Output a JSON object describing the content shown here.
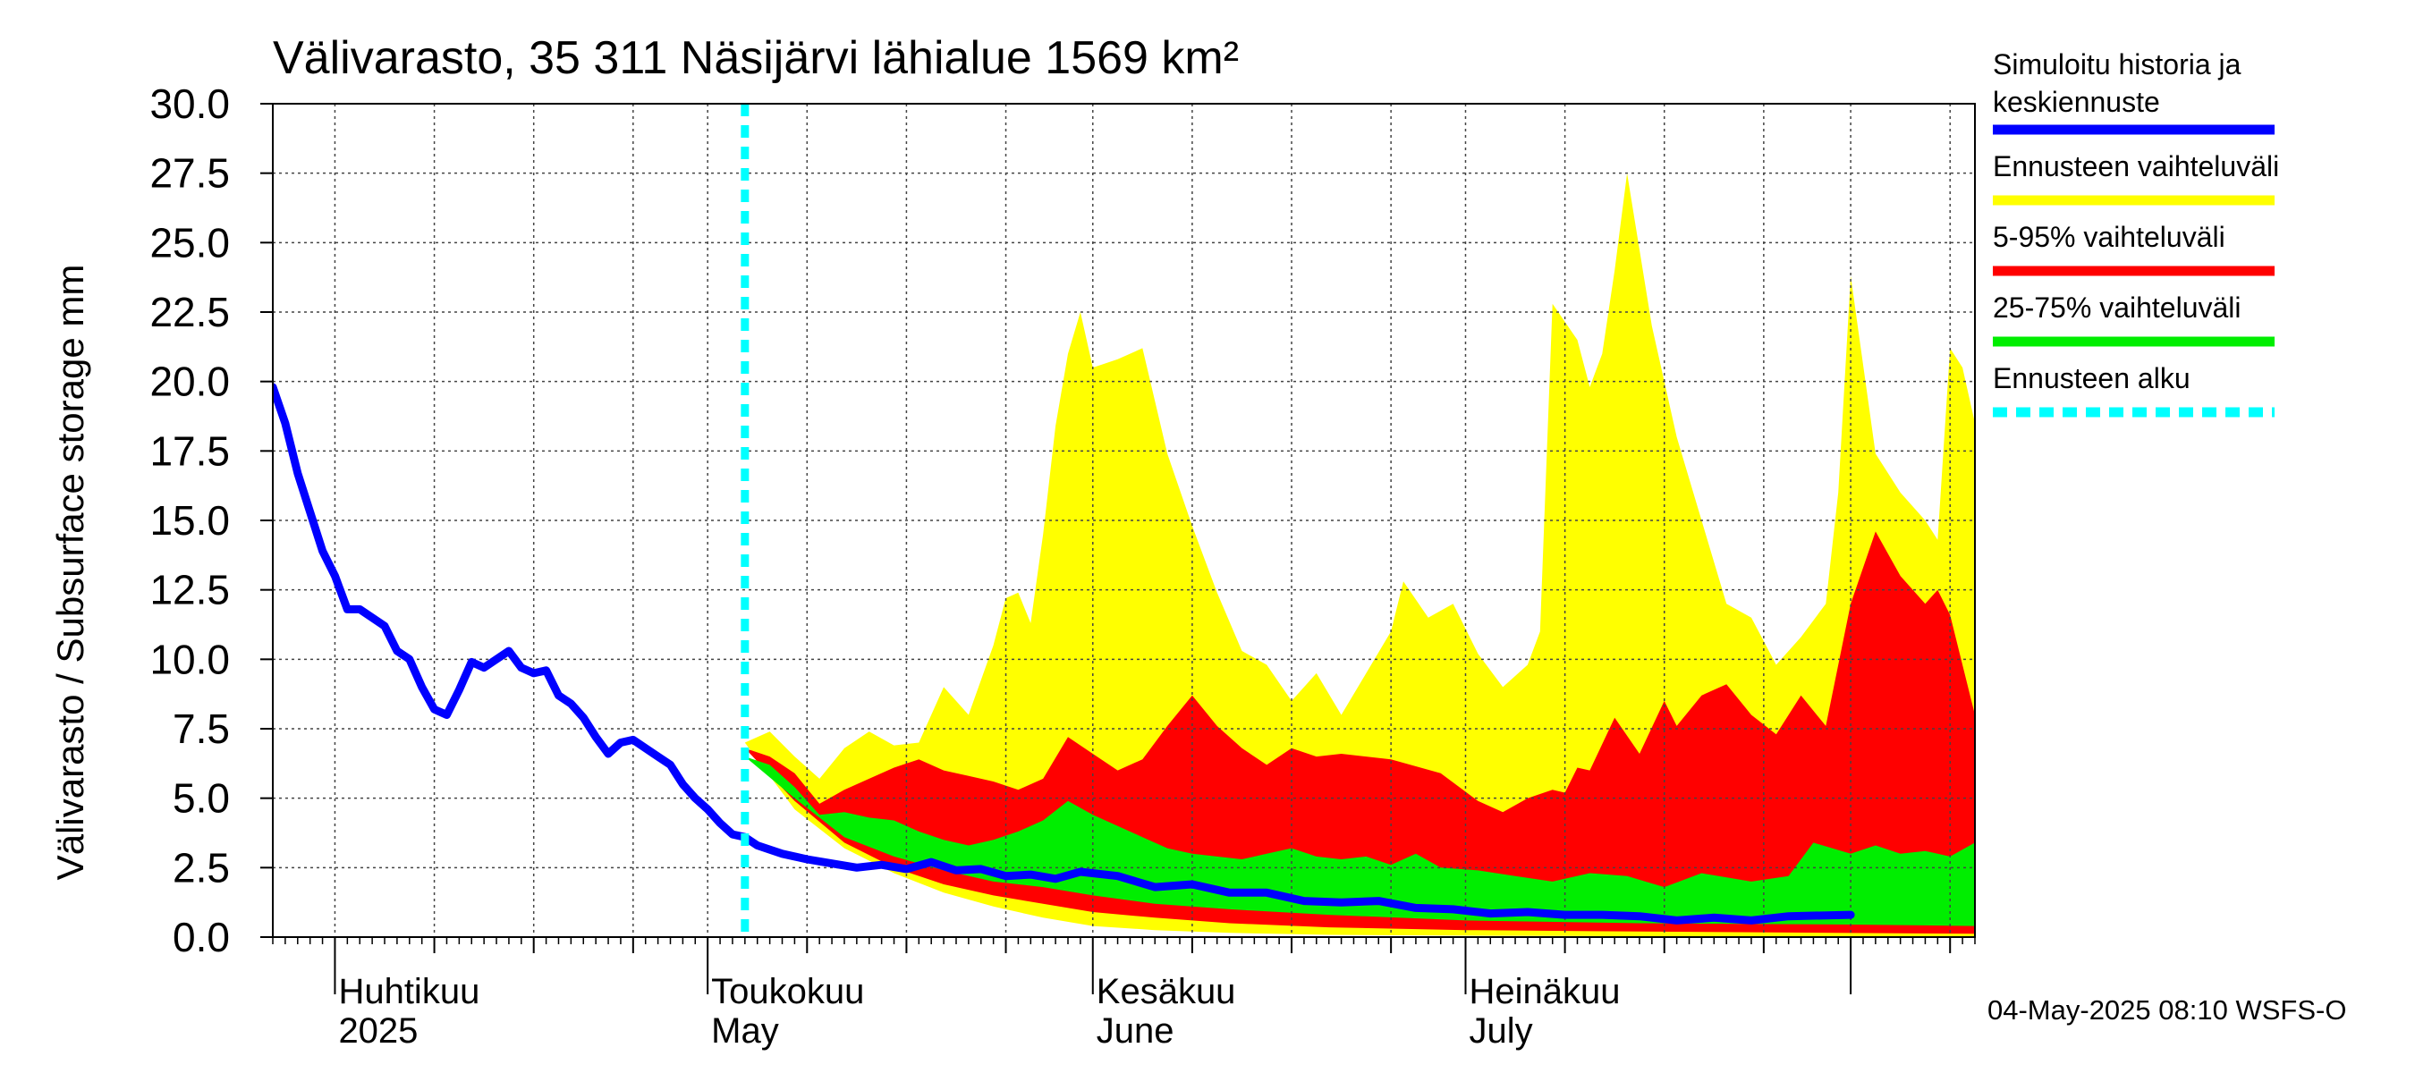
{
  "chart_data": {
    "type": "area",
    "title": "Välivarasto, 35 311 Näsijärvi lähialue 1569 km²",
    "ylabel": "Välivarasto / Subsurface storage  mm",
    "ylim": [
      0,
      30
    ],
    "yticks": [
      "0.0",
      "2.5",
      "5.0",
      "7.5",
      "10.0",
      "12.5",
      "15.0",
      "17.5",
      "20.0",
      "22.5",
      "25.0",
      "27.5",
      "30.0"
    ],
    "xlim": [
      "2025-03-27",
      "2025-08-01"
    ],
    "xticks_months": [
      {
        "date": "2025-04-01",
        "label1": "Huhtikuu",
        "label2": "2025"
      },
      {
        "date": "2025-05-01",
        "label1": "Toukokuu",
        "label2": "May"
      },
      {
        "date": "2025-06-01",
        "label1": "Kesäkuu",
        "label2": "June"
      },
      {
        "date": "2025-07-01",
        "label1": "Heinäkuu",
        "label2": "July"
      }
    ],
    "grid": true,
    "forecast_start": "2025-05-04",
    "footer": "04-May-2025 08:10 WSFS-O",
    "colors": {
      "history": "#0000ff",
      "range_full": "#ffff00",
      "range_5_95": "#ff0000",
      "range_25_75": "#00ee00",
      "forecast_start": "#00ffff"
    },
    "legend": [
      {
        "label": "Simuloitu historia ja",
        "label2": "keskiennuste",
        "color": "#0000ff",
        "style": "solid"
      },
      {
        "label": "Ennusteen vaihteluväli",
        "color": "#ffff00",
        "style": "solid"
      },
      {
        "label": "5-95% vaihteluväli",
        "color": "#ff0000",
        "style": "solid"
      },
      {
        "label": "25-75% vaihteluväli",
        "color": "#00ee00",
        "style": "solid"
      },
      {
        "label": "Ennusteen alku",
        "color": "#00ffff",
        "style": "dashed"
      }
    ],
    "history": [
      [
        "2025-03-27",
        19.8
      ],
      [
        "2025-03-28",
        18.5
      ],
      [
        "2025-03-29",
        16.7
      ],
      [
        "2025-03-30",
        15.3
      ],
      [
        "2025-03-31",
        13.9
      ],
      [
        "2025-04-01",
        13.0
      ],
      [
        "2025-04-02",
        11.8
      ],
      [
        "2025-04-03",
        11.8
      ],
      [
        "2025-04-04",
        11.5
      ],
      [
        "2025-04-05",
        11.2
      ],
      [
        "2025-04-06",
        10.3
      ],
      [
        "2025-04-07",
        10.0
      ],
      [
        "2025-04-08",
        9.0
      ],
      [
        "2025-04-09",
        8.2
      ],
      [
        "2025-04-10",
        8.0
      ],
      [
        "2025-04-11",
        8.9
      ],
      [
        "2025-04-12",
        9.9
      ],
      [
        "2025-04-13",
        9.7
      ],
      [
        "2025-04-14",
        10.0
      ],
      [
        "2025-04-15",
        10.3
      ],
      [
        "2025-04-16",
        9.7
      ],
      [
        "2025-04-17",
        9.5
      ],
      [
        "2025-04-18",
        9.6
      ],
      [
        "2025-04-19",
        8.7
      ],
      [
        "2025-04-20",
        8.4
      ],
      [
        "2025-04-21",
        7.9
      ],
      [
        "2025-04-22",
        7.2
      ],
      [
        "2025-04-23",
        6.6
      ],
      [
        "2025-04-24",
        7.0
      ],
      [
        "2025-04-25",
        7.1
      ],
      [
        "2025-04-26",
        6.8
      ],
      [
        "2025-04-27",
        6.5
      ],
      [
        "2025-04-28",
        6.2
      ],
      [
        "2025-04-29",
        5.5
      ],
      [
        "2025-04-30",
        5.0
      ],
      [
        "2025-05-01",
        4.6
      ],
      [
        "2025-05-02",
        4.1
      ],
      [
        "2025-05-03",
        3.7
      ],
      [
        "2025-05-04",
        3.6
      ],
      [
        "2025-05-05",
        3.3
      ],
      [
        "2025-05-07",
        3.0
      ],
      [
        "2025-05-09",
        2.8
      ],
      [
        "2025-05-11",
        2.65
      ],
      [
        "2025-05-13",
        2.5
      ],
      [
        "2025-05-15",
        2.6
      ],
      [
        "2025-05-17",
        2.45
      ],
      [
        "2025-05-19",
        2.7
      ],
      [
        "2025-05-21",
        2.4
      ],
      [
        "2025-05-23",
        2.45
      ],
      [
        "2025-05-25",
        2.2
      ],
      [
        "2025-05-27",
        2.25
      ],
      [
        "2025-05-29",
        2.1
      ],
      [
        "2025-05-31",
        2.35
      ],
      [
        "2025-06-03",
        2.2
      ],
      [
        "2025-06-06",
        1.8
      ],
      [
        "2025-06-09",
        1.9
      ],
      [
        "2025-06-12",
        1.6
      ],
      [
        "2025-06-15",
        1.6
      ],
      [
        "2025-06-18",
        1.3
      ],
      [
        "2025-06-21",
        1.25
      ],
      [
        "2025-06-24",
        1.3
      ],
      [
        "2025-06-27",
        1.05
      ],
      [
        "2025-06-30",
        1.0
      ],
      [
        "2025-07-03",
        0.85
      ],
      [
        "2025-07-06",
        0.9
      ],
      [
        "2025-07-09",
        0.8
      ],
      [
        "2025-07-12",
        0.8
      ],
      [
        "2025-07-15",
        0.75
      ],
      [
        "2025-07-18",
        0.6
      ],
      [
        "2025-07-21",
        0.7
      ],
      [
        "2025-07-24",
        0.6
      ],
      [
        "2025-07-27",
        0.75
      ],
      [
        "2025-08-01",
        0.8
      ]
    ],
    "range_full": {
      "upper": [
        [
          "2025-05-04",
          7.0
        ],
        [
          "2025-05-06",
          7.4
        ],
        [
          "2025-05-08",
          6.5
        ],
        [
          "2025-05-10",
          5.7
        ],
        [
          "2025-05-12",
          6.8
        ],
        [
          "2025-05-14",
          7.4
        ],
        [
          "2025-05-16",
          6.9
        ],
        [
          "2025-05-18",
          7.0
        ],
        [
          "2025-05-20",
          9.0
        ],
        [
          "2025-05-22",
          8.0
        ],
        [
          "2025-05-24",
          10.5
        ],
        [
          "2025-05-25",
          12.2
        ],
        [
          "2025-05-26",
          12.4
        ],
        [
          "2025-05-27",
          11.3
        ],
        [
          "2025-05-28",
          14.5
        ],
        [
          "2025-05-29",
          18.4
        ],
        [
          "2025-05-30",
          21.0
        ],
        [
          "2025-05-31",
          22.5
        ],
        [
          "2025-06-01",
          20.5
        ],
        [
          "2025-06-03",
          20.8
        ],
        [
          "2025-06-05",
          21.2
        ],
        [
          "2025-06-07",
          17.4
        ],
        [
          "2025-06-09",
          14.8
        ],
        [
          "2025-06-11",
          12.4
        ],
        [
          "2025-06-13",
          10.3
        ],
        [
          "2025-06-15",
          9.8
        ],
        [
          "2025-06-17",
          8.5
        ],
        [
          "2025-06-19",
          9.5
        ],
        [
          "2025-06-21",
          8.0
        ],
        [
          "2025-06-23",
          9.5
        ],
        [
          "2025-06-25",
          11.0
        ],
        [
          "2025-06-26",
          12.8
        ],
        [
          "2025-06-28",
          11.5
        ],
        [
          "2025-06-30",
          12.0
        ],
        [
          "2025-07-02",
          10.2
        ],
        [
          "2025-07-04",
          9.0
        ],
        [
          "2025-07-06",
          9.8
        ],
        [
          "2025-07-07",
          11.0
        ],
        [
          "2025-07-08",
          22.8
        ],
        [
          "2025-07-10",
          21.5
        ],
        [
          "2025-07-11",
          19.8
        ],
        [
          "2025-07-12",
          21.0
        ],
        [
          "2025-07-13",
          24.0
        ],
        [
          "2025-07-14",
          27.5
        ],
        [
          "2025-07-16",
          22.0
        ],
        [
          "2025-07-18",
          18.0
        ],
        [
          "2025-07-20",
          15.0
        ],
        [
          "2025-07-22",
          12.0
        ],
        [
          "2025-07-24",
          11.5
        ],
        [
          "2025-07-26",
          9.8
        ],
        [
          "2025-07-28",
          10.8
        ],
        [
          "2025-07-30",
          12.0
        ],
        [
          "2025-07-31",
          16.0
        ],
        [
          "2025-08-01",
          23.8
        ],
        [
          "2025-08-03",
          17.4
        ],
        [
          "2025-08-05",
          16.0
        ],
        [
          "2025-08-07",
          15.0
        ],
        [
          "2025-08-08",
          14.3
        ],
        [
          "2025-08-09",
          21.2
        ],
        [
          "2025-08-10",
          20.5
        ],
        [
          "2025-08-11",
          18.5
        ]
      ],
      "lower": [
        [
          "2025-05-04",
          7.0
        ],
        [
          "2025-05-08",
          4.6
        ],
        [
          "2025-05-12",
          3.2
        ],
        [
          "2025-05-16",
          2.3
        ],
        [
          "2025-05-20",
          1.6
        ],
        [
          "2025-05-24",
          1.1
        ],
        [
          "2025-05-28",
          0.7
        ],
        [
          "2025-06-01",
          0.4
        ],
        [
          "2025-06-06",
          0.25
        ],
        [
          "2025-06-12",
          0.15
        ],
        [
          "2025-06-20",
          0.08
        ],
        [
          "2025-07-01",
          0.05
        ],
        [
          "2025-07-15",
          0.03
        ],
        [
          "2025-08-11",
          0.02
        ]
      ]
    },
    "range_5_95": {
      "upper": [
        [
          "2025-05-04",
          6.8
        ],
        [
          "2025-05-06",
          6.5
        ],
        [
          "2025-05-08",
          5.9
        ],
        [
          "2025-05-10",
          4.8
        ],
        [
          "2025-05-12",
          5.3
        ],
        [
          "2025-05-14",
          5.7
        ],
        [
          "2025-05-16",
          6.1
        ],
        [
          "2025-05-18",
          6.4
        ],
        [
          "2025-05-20",
          6.0
        ],
        [
          "2025-05-22",
          5.8
        ],
        [
          "2025-05-24",
          5.6
        ],
        [
          "2025-05-26",
          5.3
        ],
        [
          "2025-05-28",
          5.7
        ],
        [
          "2025-05-30",
          7.2
        ],
        [
          "2025-06-01",
          6.6
        ],
        [
          "2025-06-03",
          6.0
        ],
        [
          "2025-06-05",
          6.4
        ],
        [
          "2025-06-07",
          7.6
        ],
        [
          "2025-06-09",
          8.7
        ],
        [
          "2025-06-11",
          7.6
        ],
        [
          "2025-06-13",
          6.8
        ],
        [
          "2025-06-15",
          6.2
        ],
        [
          "2025-06-17",
          6.8
        ],
        [
          "2025-06-19",
          6.5
        ],
        [
          "2025-06-21",
          6.6
        ],
        [
          "2025-06-25",
          6.4
        ],
        [
          "2025-06-29",
          5.9
        ],
        [
          "2025-07-02",
          4.9
        ],
        [
          "2025-07-04",
          4.5
        ],
        [
          "2025-07-06",
          5.0
        ],
        [
          "2025-07-08",
          5.3
        ],
        [
          "2025-07-09",
          5.2
        ],
        [
          "2025-07-10",
          6.1
        ],
        [
          "2025-07-11",
          6.0
        ],
        [
          "2025-07-13",
          7.9
        ],
        [
          "2025-07-15",
          6.6
        ],
        [
          "2025-07-17",
          8.5
        ],
        [
          "2025-07-18",
          7.6
        ],
        [
          "2025-07-20",
          8.7
        ],
        [
          "2025-07-22",
          9.1
        ],
        [
          "2025-07-24",
          8.0
        ],
        [
          "2025-07-26",
          7.3
        ],
        [
          "2025-07-28",
          8.7
        ],
        [
          "2025-07-30",
          7.6
        ],
        [
          "2025-08-01",
          12.0
        ],
        [
          "2025-08-03",
          14.6
        ],
        [
          "2025-08-05",
          13.0
        ],
        [
          "2025-08-07",
          12.0
        ],
        [
          "2025-08-08",
          12.5
        ],
        [
          "2025-08-09",
          11.6
        ],
        [
          "2025-08-11",
          8.0
        ]
      ],
      "lower": [
        [
          "2025-05-04",
          6.8
        ],
        [
          "2025-05-08",
          4.9
        ],
        [
          "2025-05-12",
          3.4
        ],
        [
          "2025-05-16",
          2.5
        ],
        [
          "2025-05-20",
          1.9
        ],
        [
          "2025-05-24",
          1.5
        ],
        [
          "2025-05-28",
          1.2
        ],
        [
          "2025-06-01",
          0.9
        ],
        [
          "2025-06-06",
          0.7
        ],
        [
          "2025-06-12",
          0.5
        ],
        [
          "2025-06-20",
          0.35
        ],
        [
          "2025-07-01",
          0.25
        ],
        [
          "2025-07-15",
          0.2
        ],
        [
          "2025-08-11",
          0.12
        ]
      ]
    },
    "range_25_75": {
      "upper": [
        [
          "2025-05-04",
          6.5
        ],
        [
          "2025-05-06",
          6.2
        ],
        [
          "2025-05-08",
          5.4
        ],
        [
          "2025-05-10",
          4.4
        ],
        [
          "2025-05-12",
          4.5
        ],
        [
          "2025-05-14",
          4.3
        ],
        [
          "2025-05-16",
          4.2
        ],
        [
          "2025-05-18",
          3.8
        ],
        [
          "2025-05-20",
          3.5
        ],
        [
          "2025-05-22",
          3.3
        ],
        [
          "2025-05-24",
          3.5
        ],
        [
          "2025-05-26",
          3.8
        ],
        [
          "2025-05-28",
          4.2
        ],
        [
          "2025-05-30",
          4.9
        ],
        [
          "2025-06-01",
          4.4
        ],
        [
          "2025-06-03",
          4.0
        ],
        [
          "2025-06-05",
          3.6
        ],
        [
          "2025-06-07",
          3.2
        ],
        [
          "2025-06-09",
          3.0
        ],
        [
          "2025-06-11",
          2.9
        ],
        [
          "2025-06-13",
          2.8
        ],
        [
          "2025-06-15",
          3.0
        ],
        [
          "2025-06-17",
          3.2
        ],
        [
          "2025-06-19",
          2.9
        ],
        [
          "2025-06-21",
          2.8
        ],
        [
          "2025-06-23",
          2.9
        ],
        [
          "2025-06-25",
          2.6
        ],
        [
          "2025-06-27",
          3.0
        ],
        [
          "2025-06-29",
          2.5
        ],
        [
          "2025-07-02",
          2.4
        ],
        [
          "2025-07-05",
          2.2
        ],
        [
          "2025-07-08",
          2.0
        ],
        [
          "2025-07-11",
          2.3
        ],
        [
          "2025-07-14",
          2.2
        ],
        [
          "2025-07-17",
          1.8
        ],
        [
          "2025-07-20",
          2.3
        ],
        [
          "2025-07-24",
          2.0
        ],
        [
          "2025-07-27",
          2.2
        ],
        [
          "2025-07-29",
          3.4
        ],
        [
          "2025-08-01",
          3.0
        ],
        [
          "2025-08-03",
          3.3
        ],
        [
          "2025-08-05",
          3.0
        ],
        [
          "2025-08-07",
          3.1
        ],
        [
          "2025-08-09",
          2.9
        ],
        [
          "2025-08-11",
          3.4
        ]
      ],
      "lower": [
        [
          "2025-05-04",
          6.5
        ],
        [
          "2025-05-08",
          5.0
        ],
        [
          "2025-05-12",
          3.6
        ],
        [
          "2025-05-16",
          2.9
        ],
        [
          "2025-05-20",
          2.4
        ],
        [
          "2025-05-24",
          2.0
        ],
        [
          "2025-05-28",
          1.8
        ],
        [
          "2025-06-01",
          1.5
        ],
        [
          "2025-06-06",
          1.2
        ],
        [
          "2025-06-12",
          1.0
        ],
        [
          "2025-06-20",
          0.8
        ],
        [
          "2025-07-01",
          0.6
        ],
        [
          "2025-07-15",
          0.5
        ],
        [
          "2025-08-01",
          0.45
        ],
        [
          "2025-08-11",
          0.4
        ]
      ]
    }
  }
}
